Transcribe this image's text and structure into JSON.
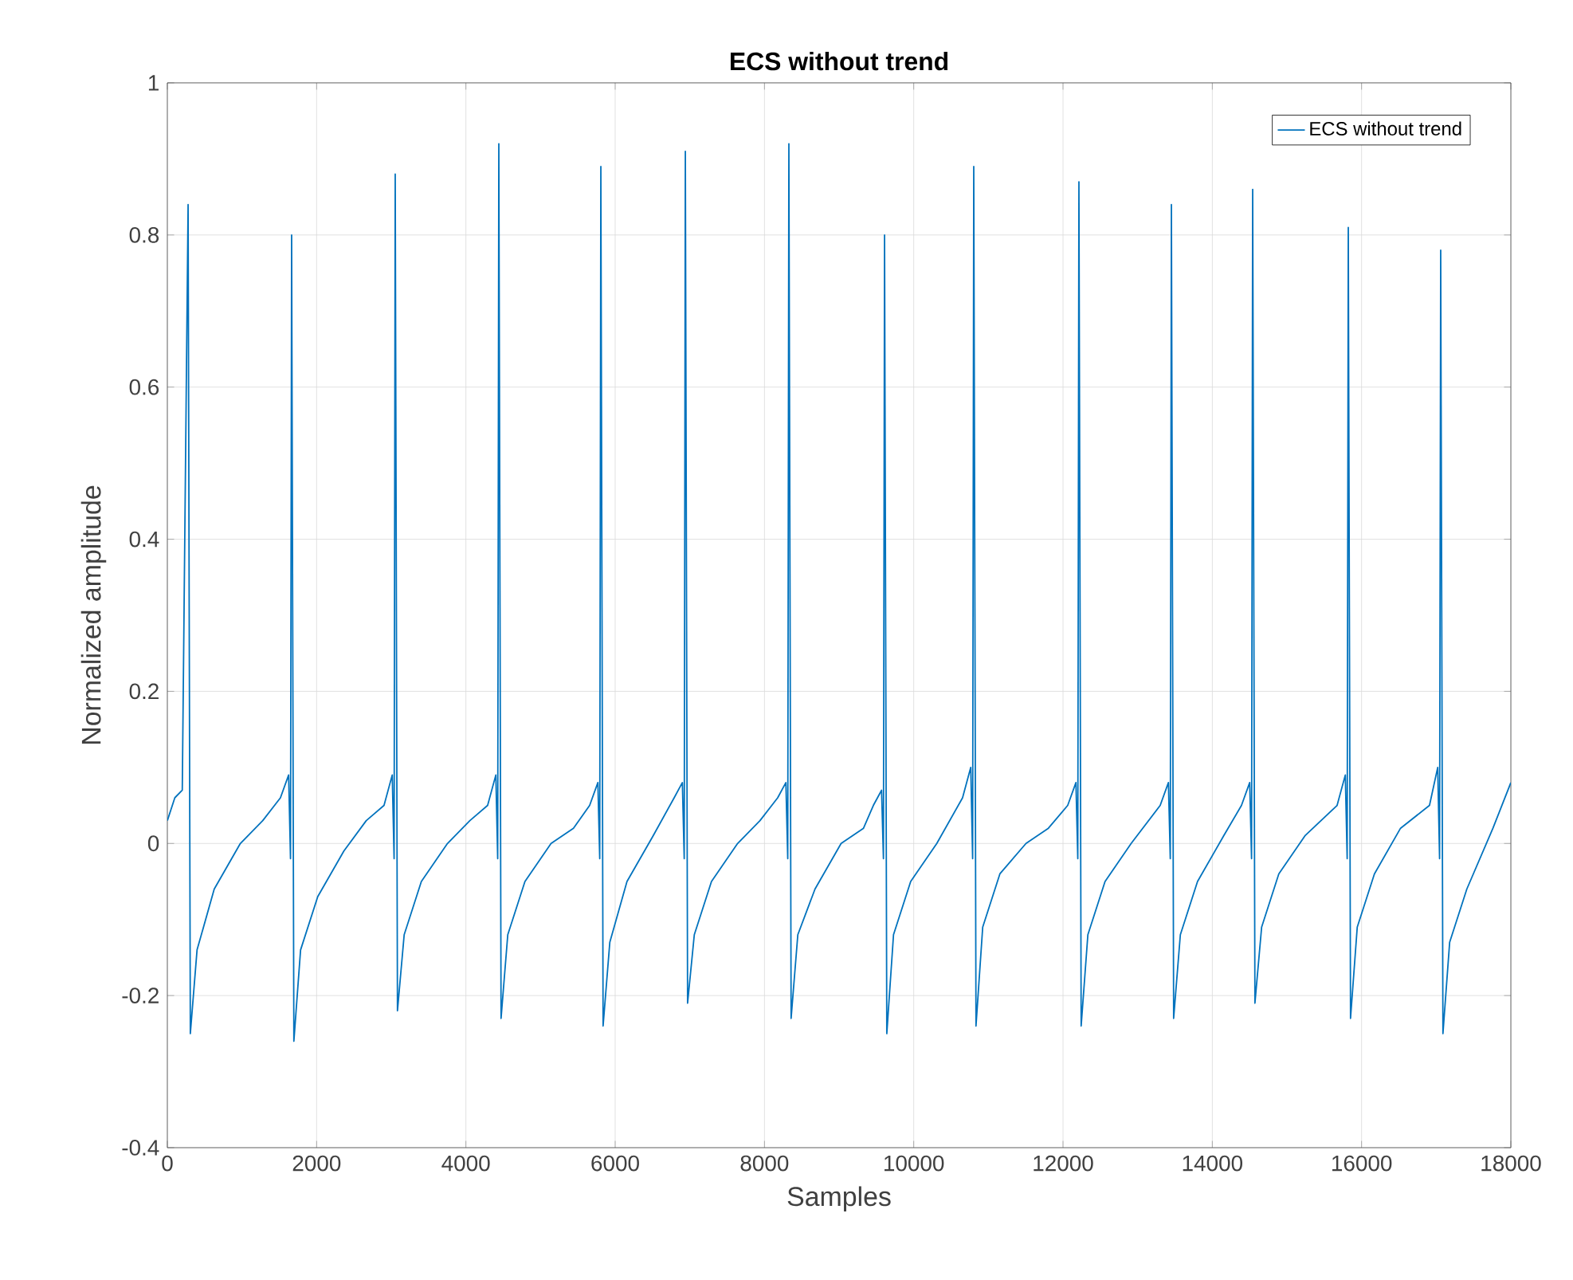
{
  "chart_data": {
    "type": "line",
    "title": "ECS without trend",
    "xlabel": "Samples",
    "ylabel": "Normalized amplitude",
    "x": [
      0,
      100,
      200,
      278,
      308,
      398,
      628,
      978,
      1278,
      1515,
      1625,
      1650,
      1665,
      1695,
      1785,
      2015,
      2365,
      2665,
      2903,
      3013,
      3038,
      3053,
      3083,
      3173,
      3403,
      3753,
      4053,
      4291,
      4401,
      4426,
      4441,
      4471,
      4561,
      4791,
      5141,
      5441,
      5658,
      5768,
      5793,
      5808,
      5838,
      5928,
      6158,
      6508,
      6790,
      6900,
      6925,
      6940,
      6970,
      7060,
      7290,
      7640,
      7940,
      8177,
      8287,
      8312,
      8327,
      8357,
      8447,
      8677,
      9027,
      9327,
      9459,
      9569,
      9594,
      9609,
      9639,
      9729,
      9959,
      10309,
      10654,
      10764,
      10789,
      10804,
      10834,
      10924,
      11154,
      11504,
      11804,
      12063,
      12173,
      12198,
      12213,
      12243,
      12333,
      12563,
      12913,
      13302,
      13412,
      13437,
      13452,
      13482,
      13572,
      13802,
      14152,
      14391,
      14501,
      14526,
      14541,
      14571,
      14661,
      14891,
      15241,
      15672,
      15782,
      15807,
      15822,
      15852,
      15942,
      16172,
      16522,
      16910,
      17020,
      17045,
      17060,
      17090,
      17180,
      17410,
      17760,
      18000
    ],
    "series": [
      {
        "name": "ECS without trend",
        "color": "#0072bd",
        "values": [
          0.03,
          0.06,
          0.07,
          0.84,
          -0.25,
          -0.14,
          -0.06,
          0.0,
          0.03,
          0.06,
          0.09,
          -0.02,
          0.8,
          -0.26,
          -0.14,
          -0.07,
          -0.01,
          0.03,
          0.05,
          0.09,
          -0.02,
          0.88,
          -0.22,
          -0.12,
          -0.05,
          0.0,
          0.03,
          0.05,
          0.09,
          -0.02,
          0.92,
          -0.23,
          -0.12,
          -0.05,
          0.0,
          0.02,
          0.05,
          0.08,
          -0.02,
          0.89,
          -0.24,
          -0.13,
          -0.05,
          0.01,
          0.06,
          0.08,
          -0.02,
          0.91,
          -0.21,
          -0.12,
          -0.05,
          0.0,
          0.03,
          0.06,
          0.08,
          -0.02,
          0.92,
          -0.23,
          -0.12,
          -0.06,
          0.0,
          0.02,
          0.05,
          0.07,
          -0.02,
          0.8,
          -0.25,
          -0.12,
          -0.05,
          0.0,
          0.06,
          0.1,
          -0.02,
          0.89,
          -0.24,
          -0.11,
          -0.04,
          0.0,
          0.02,
          0.05,
          0.08,
          -0.02,
          0.87,
          -0.24,
          -0.12,
          -0.05,
          0.0,
          0.05,
          0.08,
          -0.02,
          0.84,
          -0.23,
          -0.12,
          -0.05,
          0.01,
          0.05,
          0.08,
          -0.02,
          0.86,
          -0.21,
          -0.11,
          -0.04,
          0.01,
          0.05,
          0.09,
          -0.02,
          0.81,
          -0.23,
          -0.11,
          -0.04,
          0.02,
          0.05,
          0.1,
          -0.02,
          0.78,
          -0.25,
          -0.13,
          -0.06,
          0.02,
          0.08
        ]
      }
    ],
    "xlim": [
      0,
      18000
    ],
    "xticks": [
      0,
      2000,
      4000,
      6000,
      8000,
      10000,
      12000,
      14000,
      16000,
      18000
    ],
    "ylim": [
      -0.4,
      1
    ],
    "yticks": [
      -0.4,
      -0.2,
      0,
      0.2,
      0.4,
      0.6,
      0.8,
      1
    ],
    "grid": true,
    "legend": "top right",
    "marker": "none",
    "line_style": "solid"
  }
}
